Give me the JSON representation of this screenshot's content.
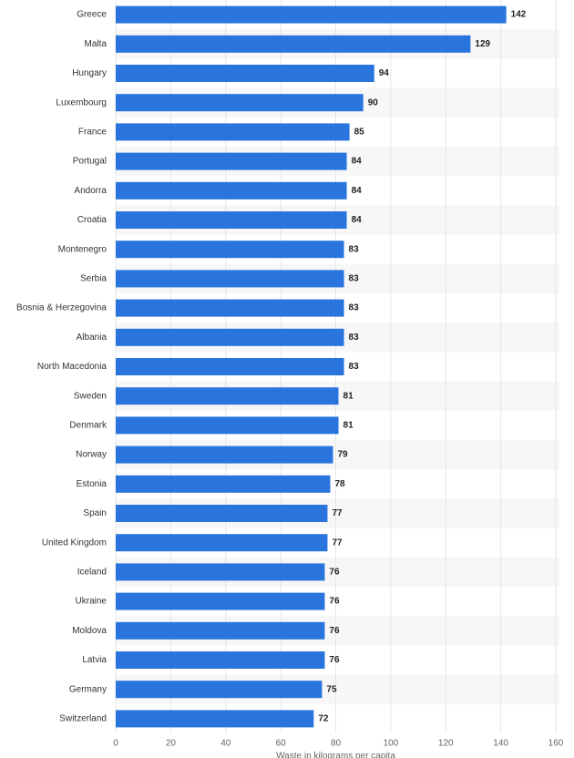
{
  "chart_data": {
    "type": "bar",
    "orientation": "horizontal",
    "categories": [
      "Greece",
      "Malta",
      "Hungary",
      "Luxembourg",
      "France",
      "Portugal",
      "Andorra",
      "Croatia",
      "Montenegro",
      "Serbia",
      "Bosnia & Herzegovina",
      "Albania",
      "North Macedonia",
      "Sweden",
      "Denmark",
      "Norway",
      "Estonia",
      "Spain",
      "United Kingdom",
      "Iceland",
      "Ukraine",
      "Moldova",
      "Latvia",
      "Germany",
      "Switzerland"
    ],
    "values": [
      142,
      129,
      94,
      90,
      85,
      84,
      84,
      84,
      83,
      83,
      83,
      83,
      83,
      81,
      81,
      79,
      78,
      77,
      77,
      76,
      76,
      76,
      76,
      75,
      72
    ],
    "color": "#2a75dd",
    "xlabel": "Waste in kilograms per capita",
    "xlim": [
      0,
      160
    ],
    "xticks": [
      0,
      20,
      40,
      60,
      80,
      100,
      120,
      140,
      160
    ],
    "grid": true
  }
}
